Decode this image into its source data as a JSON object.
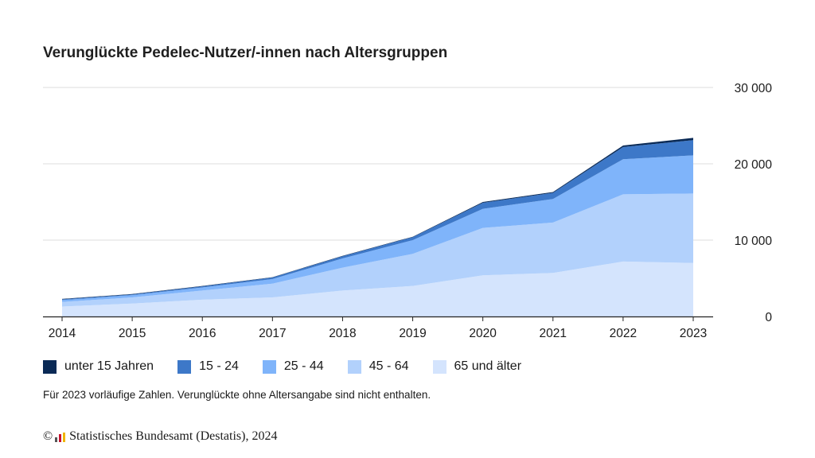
{
  "header": {
    "title": "Verunglückte Pedelec-Nutzer/-innen nach Altersgruppen"
  },
  "chart_data": {
    "type": "area",
    "stacked": true,
    "title": "Verunglückte Pedelec-Nutzer/-innen nach Altersgruppen",
    "xlabel": "",
    "ylabel": "",
    "x": [
      "2014",
      "2015",
      "2016",
      "2017",
      "2018",
      "2019",
      "2020",
      "2021",
      "2022",
      "2023"
    ],
    "ylim": [
      0,
      30000
    ],
    "yticks": [
      0,
      10000,
      20000,
      30000
    ],
    "ytick_labels": [
      "0",
      "10 000",
      "20 000",
      "30 000"
    ],
    "y_axis_position": "right",
    "grid": true,
    "legend_position": "bottom",
    "series": [
      {
        "name": "65 und älter",
        "color": "#d4e4fd",
        "values": [
          1300,
          1700,
          2200,
          2500,
          3400,
          4000,
          5400,
          5700,
          7200,
          7000
        ]
      },
      {
        "name": "45 - 64",
        "color": "#b2d1fc",
        "values": [
          600,
          800,
          1200,
          1800,
          3000,
          4200,
          6200,
          6600,
          8800,
          9100
        ]
      },
      {
        "name": "25 - 44",
        "color": "#7fb4fa",
        "values": [
          250,
          300,
          400,
          600,
          1200,
          1800,
          2500,
          3100,
          4600,
          5000
        ]
      },
      {
        "name": "15 - 24",
        "color": "#3d78c8",
        "values": [
          100,
          100,
          150,
          200,
          300,
          400,
          800,
          800,
          1600,
          2000
        ]
      },
      {
        "name": "unter 15 Jahren",
        "color": "#0a2a56",
        "values": [
          50,
          50,
          50,
          50,
          50,
          50,
          100,
          100,
          200,
          300
        ]
      }
    ]
  },
  "legend": {
    "items": [
      {
        "label": "unter 15 Jahren",
        "color": "#0a2a56"
      },
      {
        "label": "15 - 24",
        "color": "#3d78c8"
      },
      {
        "label": "25 - 44",
        "color": "#7fb4fa"
      },
      {
        "label": "45 - 64",
        "color": "#b2d1fc"
      },
      {
        "label": "65 und älter",
        "color": "#d4e4fd"
      }
    ]
  },
  "footer": {
    "note": "Für 2023 vorläufige Zahlen. Verunglückte ohne Altersangabe sind nicht enthalten.",
    "copyright_symbol": "©",
    "source": "Statistisches Bundesamt (Destatis), 2024"
  }
}
